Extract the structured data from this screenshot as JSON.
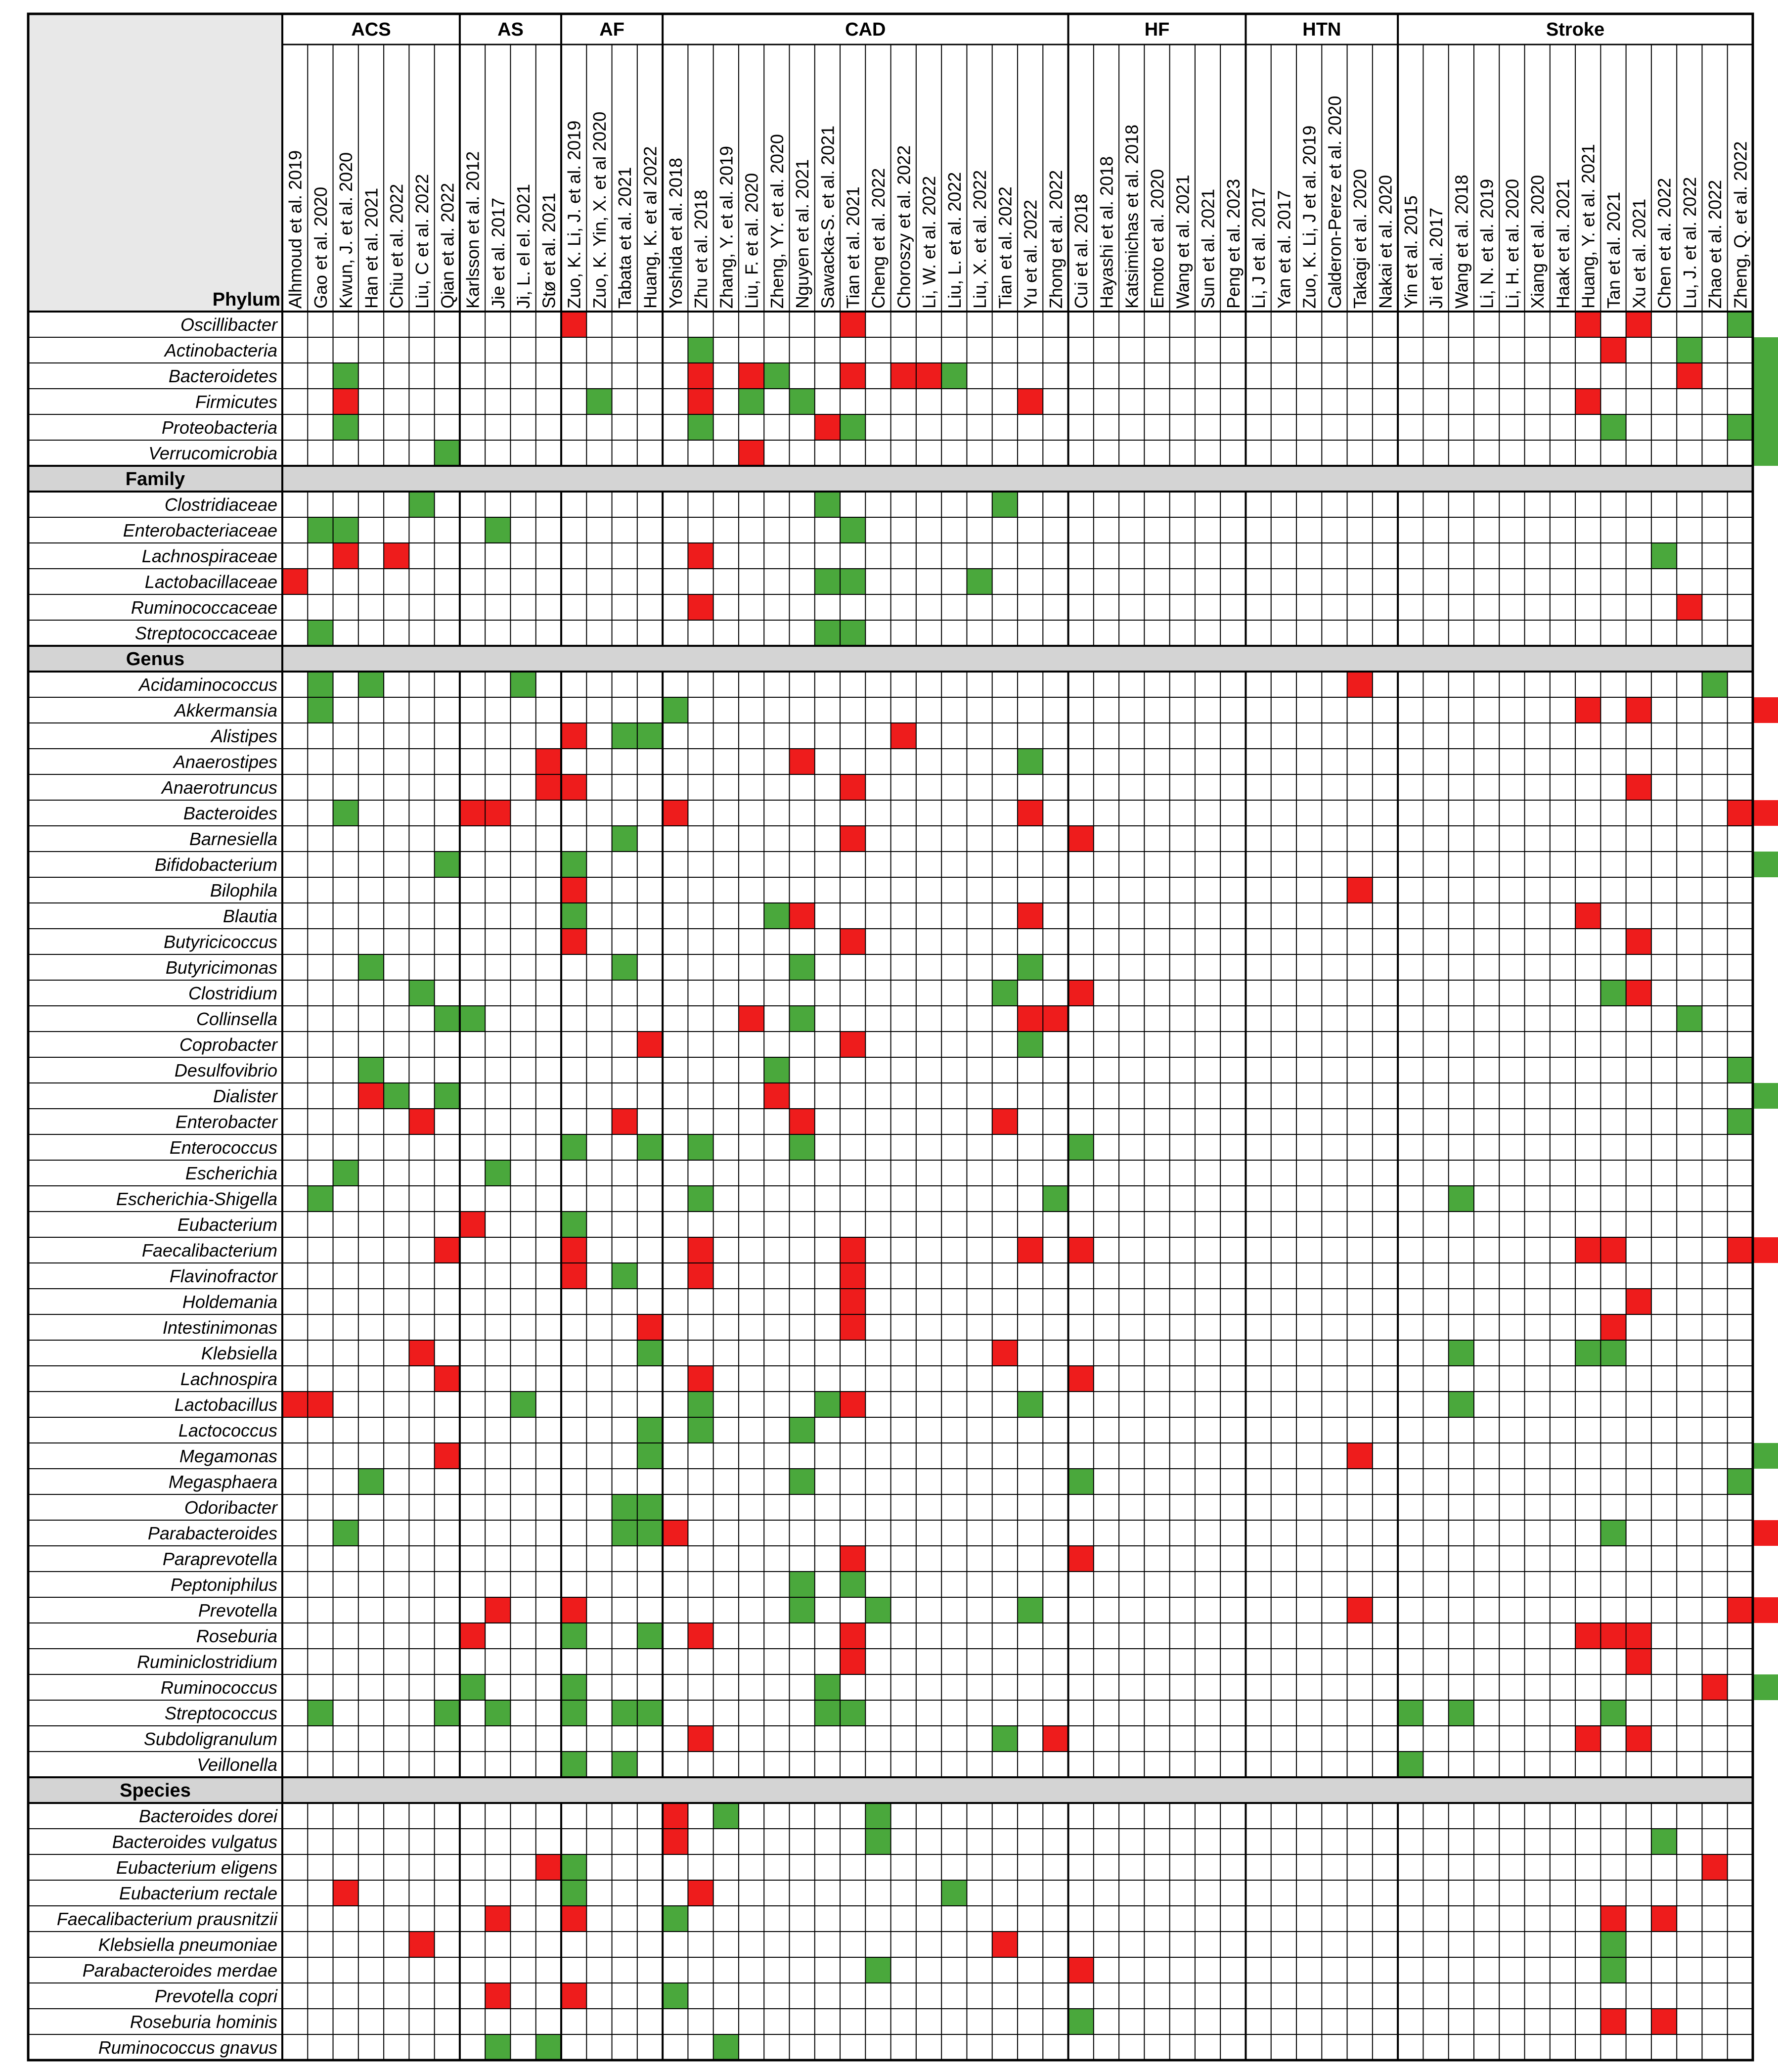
{
  "chart_data": {
    "type": "heatmap",
    "corner_label": "Phylum",
    "colors": {
      "increased": "#ee1c1c",
      "decreased": "#4aa83c",
      "section_fill": "#d4d4d4",
      "corner_fill": "#e8e8e8",
      "grid": "#000000"
    },
    "groups": [
      {
        "name": "ACS",
        "studies": [
          "Alhmoud et al. 2019",
          "Gao et al. 2020",
          "Kwun, J. et al. 2020",
          "Han et al. 2021",
          "Chiu et al. 2022",
          "Liu, C et al. 2022",
          "Qian et al. 2022"
        ]
      },
      {
        "name": "AS",
        "studies": [
          "Karlsson et al. 2012",
          "Jie et al. 2017",
          "Ji, L. el el. 2021",
          "Stø et al. 2021"
        ]
      },
      {
        "name": "AF",
        "studies": [
          "Zuo, K. Li, J. et al. 2019",
          "Zuo, K. Yin, X. et al 2020",
          "Tabata et al. 2021",
          "Huang, K. et al 2022"
        ]
      },
      {
        "name": "CAD",
        "studies": [
          "Yoshida et al. 2018",
          "Zhu et al. 2018",
          "Zhang, Y. et al. 2019",
          "Liu, F. et al. 2020",
          "Zheng, YY. et al. 2020",
          "Nguyen et al. 2021",
          "Sawacka-S. et al. 2021",
          "Tian et al. 2021",
          "Cheng et al. 2022",
          "Choroszy et al. 2022",
          "Li, W. et al. 2022",
          "Liu, L. et al. 2022",
          "Liu, X. et al. 2022",
          "Tian et al. 2022",
          "Yu et al. 2022",
          "Zhong et al. 2022"
        ]
      },
      {
        "name": "HF",
        "studies": [
          "Cui et al. 2018",
          "Hayashi et al. 2018",
          "Katsimichas et al. 2018",
          "Emoto et al. 2020",
          "Wang et al. 2021",
          "Sun et al. 2021",
          "Peng et al. 2023"
        ]
      },
      {
        "name": "HTN",
        "studies": [
          "Li, J et al. 2017",
          "Yan et al. 2017",
          "Zuo, K. Li, J et al. 2019",
          "Calderon-Perez et al. 2020",
          "Takagi et al. 2020",
          "Nakai et al. 2020"
        ]
      },
      {
        "name": "Stroke",
        "studies": [
          "Yin et al. 2015",
          "Ji et al. 2017",
          "Wang et al. 2018",
          "Li, N. et al. 2019",
          "Li, H. et al. 2020",
          "Xiang et al. 2020",
          "Haak et al. 2021",
          "Huang, Y. et al. 2021",
          "Tan et al. 2021",
          "Xu et al. 2021",
          "Chen et al. 2022",
          "Lu, J. et al. 2022",
          "Zhao et al. 2022",
          "Zheng, Q. et al. 2022"
        ]
      }
    ],
    "sections": [
      {
        "name": "Phylum",
        "header_row": false,
        "rows": [
          {
            "taxon": "Oscillibacter",
            "increased": [
              11,
              22,
              51,
              53
            ],
            "decreased": [
              57,
              63
            ]
          },
          {
            "taxon": "Actinobacteria",
            "increased": [
              52
            ],
            "decreased": [
              16,
              55,
              58,
              61,
              62,
              66
            ]
          },
          {
            "taxon": "Bacteroidetes",
            "increased": [
              16,
              18,
              22,
              24,
              25,
              55,
              61,
              62,
              65
            ],
            "decreased": [
              2,
              19,
              26,
              58,
              60,
              66
            ]
          },
          {
            "taxon": "Firmicutes",
            "increased": [
              2,
              16,
              29,
              51,
              61,
              62,
              63,
              66
            ],
            "decreased": [
              12,
              18,
              20,
              58,
              65
            ]
          },
          {
            "taxon": "Proteobacteria",
            "increased": [
              21
            ],
            "decreased": [
              2,
              16,
              22,
              52,
              57,
              58,
              61,
              63,
              65
            ]
          },
          {
            "taxon": "Verrucomicrobia",
            "increased": [
              18
            ],
            "decreased": [
              6,
              58
            ]
          }
        ]
      },
      {
        "name": "Family",
        "header_row": true,
        "rows": [
          {
            "taxon": "Clostridiaceae",
            "increased": [],
            "decreased": [
              5,
              21,
              28
            ]
          },
          {
            "taxon": "Enterobacteriaceae",
            "increased": [],
            "decreased": [
              1,
              2,
              8,
              22,
              64,
              70
            ]
          },
          {
            "taxon": "Lachnospiraceae",
            "increased": [
              2,
              4,
              16,
              64
            ],
            "decreased": [
              54,
              62
            ]
          },
          {
            "taxon": "Lactobacillaceae",
            "increased": [
              0
            ],
            "decreased": [
              21,
              22,
              27,
              64,
              65,
              70
            ]
          },
          {
            "taxon": "Ruminococcaceae",
            "increased": [
              16,
              55
            ],
            "decreased": [
              65
            ]
          },
          {
            "taxon": "Streptococcaceae",
            "increased": [],
            "decreased": [
              1,
              21,
              22,
              70
            ]
          }
        ]
      },
      {
        "name": "Genus",
        "header_row": true,
        "rows": [
          {
            "taxon": "Acidaminococcus",
            "increased": [
              42
            ],
            "decreased": [
              1,
              3,
              9,
              56
            ]
          },
          {
            "taxon": "Akkermansia",
            "increased": [
              51,
              53,
              58
            ],
            "decreased": [
              1,
              15,
              60,
              64,
              66,
              68
            ]
          },
          {
            "taxon": "Alistipes",
            "increased": [
              11,
              24
            ],
            "decreased": [
              13,
              14
            ]
          },
          {
            "taxon": "Anaerostipes",
            "increased": [
              10,
              20,
              60,
              64
            ],
            "decreased": [
              29
            ]
          },
          {
            "taxon": "Anaerotruncus",
            "increased": [
              10,
              11,
              22,
              53
            ],
            "decreased": [
              65
            ]
          },
          {
            "taxon": "Bacteroides",
            "increased": [
              7,
              8,
              15,
              29,
              57,
              58,
              63,
              64
            ],
            "decreased": [
              2,
              62
            ]
          },
          {
            "taxon": "Barnesiella",
            "increased": [
              22,
              31
            ],
            "decreased": [
              13
            ]
          },
          {
            "taxon": "Bifidobacterium",
            "increased": [],
            "decreased": [
              6,
              11,
              58,
              65,
              66
            ]
          },
          {
            "taxon": "Bilophila",
            "increased": [
              11,
              42
            ],
            "decreased": [
              65
            ]
          },
          {
            "taxon": "Blautia",
            "increased": [
              20,
              29,
              51,
              64
            ],
            "decreased": [
              11,
              19
            ]
          },
          {
            "taxon": "Butyricicoccus",
            "increased": [
              11,
              22,
              53,
              61
            ],
            "decreased": []
          },
          {
            "taxon": "Butyricimonas",
            "increased": [],
            "decreased": [
              3,
              13,
              20,
              29
            ]
          },
          {
            "taxon": "Clostridium",
            "increased": [
              31,
              53
            ],
            "decreased": [
              5,
              28,
              52,
              68
            ]
          },
          {
            "taxon": "Collinsella",
            "increased": [
              18,
              29,
              30
            ],
            "decreased": [
              6,
              7,
              20,
              55
            ]
          },
          {
            "taxon": "Coprobacter",
            "increased": [
              14,
              22
            ],
            "decreased": [
              29
            ]
          },
          {
            "taxon": "Desulfovibrio",
            "increased": [],
            "decreased": [
              3,
              19,
              57,
              65
            ]
          },
          {
            "taxon": "Dialister",
            "increased": [
              3,
              19,
              70
            ],
            "decreased": [
              4,
              6,
              58
            ]
          },
          {
            "taxon": "Enterobacter",
            "increased": [
              5,
              13,
              20,
              28
            ],
            "decreased": [
              57
            ]
          },
          {
            "taxon": "Enterococcus",
            "increased": [
              63
            ],
            "decreased": [
              11,
              14,
              16,
              20,
              31,
              62,
              67
            ]
          },
          {
            "taxon": "Escherichia",
            "increased": [],
            "decreased": [
              2,
              8,
              62,
              63,
              70
            ]
          },
          {
            "taxon": "Escherichia-Shigella",
            "increased": [],
            "decreased": [
              1,
              16,
              30,
              46
            ]
          },
          {
            "taxon": "Eubacterium",
            "increased": [
              7,
              61
            ],
            "decreased": [
              11
            ]
          },
          {
            "taxon": "Faecalibacterium",
            "increased": [
              6,
              11,
              16,
              22,
              29,
              31,
              51,
              52,
              57,
              58,
              61,
              64,
              70
            ],
            "decreased": []
          },
          {
            "taxon": "Flavinofractor",
            "increased": [
              11,
              16,
              22
            ],
            "decreased": [
              13
            ]
          },
          {
            "taxon": "Holdemania",
            "increased": [
              22,
              53
            ],
            "decreased": [
              65
            ]
          },
          {
            "taxon": "Intestinimonas",
            "increased": [
              14,
              22,
              52
            ],
            "decreased": []
          },
          {
            "taxon": "Klebsiella",
            "increased": [
              5,
              28
            ],
            "decreased": [
              14,
              46,
              51,
              52,
              65,
              70
            ]
          },
          {
            "taxon": "Lachnospira",
            "increased": [
              6,
              16,
              31
            ],
            "decreased": []
          },
          {
            "taxon": "Lactobacillus",
            "increased": [
              0,
              1,
              22,
              63
            ],
            "decreased": [
              9,
              16,
              21,
              29,
              46,
              61,
              65,
              66,
              70
            ]
          },
          {
            "taxon": "Lactococcus",
            "increased": [],
            "decreased": [
              14,
              16,
              20,
              61
            ]
          },
          {
            "taxon": "Megamonas",
            "increased": [
              6,
              42
            ],
            "decreased": [
              14,
              58,
              63
            ]
          },
          {
            "taxon": "Megasphaera",
            "increased": [],
            "decreased": [
              3,
              20,
              31,
              57
            ]
          },
          {
            "taxon": "Odoribacter",
            "increased": [],
            "decreased": [
              13,
              14,
              60,
              68
            ]
          },
          {
            "taxon": "Parabacteroides",
            "increased": [
              15,
              58
            ],
            "decreased": [
              2,
              13,
              14,
              52,
              65,
              67
            ]
          },
          {
            "taxon": "Paraprevotella",
            "increased": [
              22,
              31
            ],
            "decreased": []
          },
          {
            "taxon": "Peptoniphilus",
            "increased": [],
            "decreased": [
              20,
              22,
              63
            ]
          },
          {
            "taxon": "Prevotella",
            "increased": [
              8,
              11,
              42,
              57,
              58
            ],
            "decreased": [
              20,
              23,
              29
            ]
          },
          {
            "taxon": "Roseburia",
            "increased": [
              7,
              16,
              22,
              51,
              52,
              53,
              61,
              64,
              70
            ],
            "decreased": [
              11,
              14
            ]
          },
          {
            "taxon": "Ruminiclostridium",
            "increased": [
              22,
              53,
              60
            ],
            "decreased": []
          },
          {
            "taxon": "Ruminococcus",
            "increased": [
              56,
              63
            ],
            "decreased": [
              7,
              11,
              21,
              58,
              68
            ]
          },
          {
            "taxon": "Streptococcus",
            "increased": [],
            "decreased": [
              1,
              6,
              8,
              11,
              13,
              14,
              21,
              22,
              44,
              46,
              52,
              66,
              67,
              70
            ]
          },
          {
            "taxon": "Subdoligranulum",
            "increased": [
              16,
              30,
              51,
              53,
              61,
              63
            ],
            "decreased": [
              28
            ]
          },
          {
            "taxon": "Veillonella",
            "increased": [],
            "decreased": [
              11,
              13,
              44,
              67
            ]
          }
        ]
      },
      {
        "name": "Species",
        "header_row": true,
        "rows": [
          {
            "taxon": "Bacteroides dorei",
            "increased": [
              15
            ],
            "decreased": [
              17,
              23
            ]
          },
          {
            "taxon": "Bacteroides vulgatus",
            "increased": [
              15
            ],
            "decreased": [
              23,
              54
            ]
          },
          {
            "taxon": "Eubacterium eligens",
            "increased": [
              10,
              56
            ],
            "decreased": [
              11
            ]
          },
          {
            "taxon": "Eubacterium rectale",
            "increased": [
              2,
              16
            ],
            "decreased": [
              11,
              26
            ]
          },
          {
            "taxon": "Faecalibacterium prausnitzii",
            "increased": [
              8,
              11,
              52,
              54
            ],
            "decreased": [
              15
            ]
          },
          {
            "taxon": "Klebsiella pneumoniae",
            "increased": [
              5,
              28
            ],
            "decreased": [
              52
            ]
          },
          {
            "taxon": "Parabacteroides merdae",
            "increased": [
              31
            ],
            "decreased": [
              23,
              52
            ]
          },
          {
            "taxon": "Prevotella copri",
            "increased": [
              8,
              11
            ],
            "decreased": [
              15
            ]
          },
          {
            "taxon": "Roseburia hominis",
            "increased": [
              52,
              54
            ],
            "decreased": [
              31
            ]
          },
          {
            "taxon": "Ruminococcus gnavus",
            "increased": [],
            "decreased": [
              8,
              10,
              17
            ]
          }
        ]
      }
    ]
  }
}
